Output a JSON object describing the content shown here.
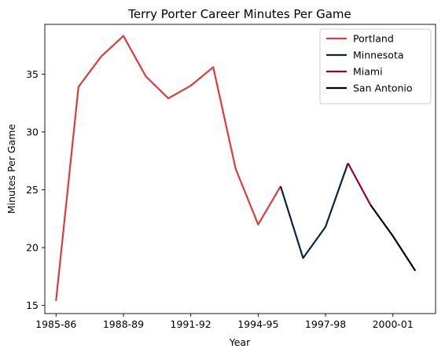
{
  "chart_data": {
    "type": "line",
    "title": "Terry Porter Career Minutes Per Game",
    "xlabel": "Year",
    "ylabel": "Minutes Per Game",
    "x_tick_labels": [
      {
        "x": 0,
        "label": "1985-86"
      },
      {
        "x": 3,
        "label": "1988-89"
      },
      {
        "x": 6,
        "label": "1991-92"
      },
      {
        "x": 9,
        "label": "1994-95"
      },
      {
        "x": 12,
        "label": "1997-98"
      },
      {
        "x": 15,
        "label": "2000-01"
      }
    ],
    "y_ticks": [
      15,
      20,
      25,
      30,
      35
    ],
    "xlim": [
      -0.5,
      16.9
    ],
    "ylim": [
      14.3,
      39.3
    ],
    "grid": false,
    "legend_position": "top-right",
    "series": [
      {
        "name": "Portland",
        "color": "#e03a3e",
        "x": [
          0,
          1,
          2,
          3,
          4,
          5,
          6,
          7,
          8,
          9,
          10
        ],
        "y": [
          15.4,
          33.9,
          36.5,
          38.3,
          34.8,
          32.9,
          34.0,
          35.6,
          26.8,
          22.0,
          25.3
        ]
      },
      {
        "name": "Minnesota",
        "color": "#0c2340",
        "x": [
          10,
          11,
          12,
          13
        ],
        "y": [
          25.3,
          19.1,
          21.8,
          27.3
        ]
      },
      {
        "name": "Miami",
        "color": "#98002e",
        "x": [
          13,
          14
        ],
        "y": [
          27.3,
          23.7
        ]
      },
      {
        "name": "San Antonio",
        "color": "#000000",
        "x": [
          14,
          15,
          16
        ],
        "y": [
          23.7,
          21.0,
          18.0
        ]
      }
    ]
  }
}
